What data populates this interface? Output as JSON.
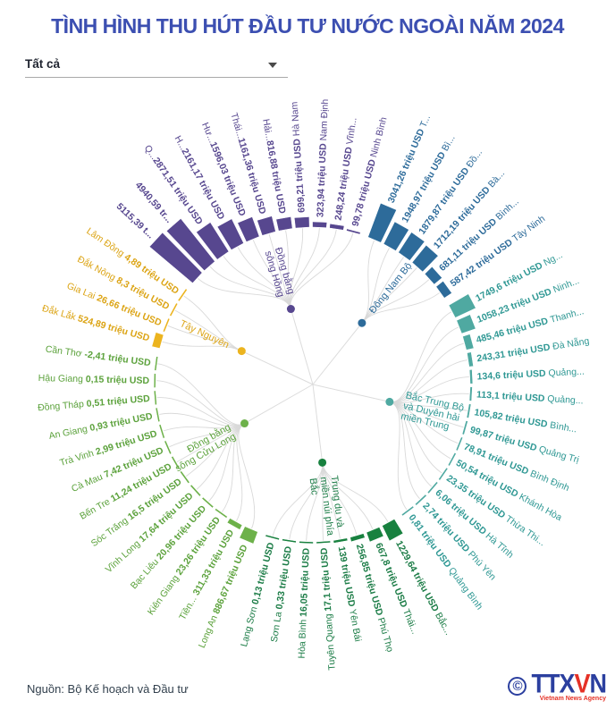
{
  "header": {
    "title": "TÌNH HÌNH THU HÚT ĐẦU TƯ NƯỚC NGOÀI NĂM 2024"
  },
  "filter": {
    "value": "Tất cả"
  },
  "footer": {
    "source": "Nguồn: Bộ Kế hoạch và Đầu tư",
    "logo": {
      "copyright": "©",
      "part1": "TTX",
      "part2": "V",
      "part3": "N",
      "subtitle": "Vietnam News Agency"
    }
  },
  "chart_data": {
    "type": "radial-bar",
    "title": "TÌNH HÌNH THU HÚT ĐẦU TƯ NƯỚC NGOÀI NĂM 2024",
    "unit": "triệu USD",
    "max_value": 5115.39,
    "legend_position": "center-nodes",
    "regions": [
      {
        "full_name": "Đồng bằng sông Hồng",
        "name_lines": [
          "Đồng bằng",
          "sông Hồng"
        ],
        "bar_color": "#57478f",
        "text_color": "#57478f",
        "provinces": [
          {
            "value": 5115.39,
            "parts": [
              [
                "5115,39 t...",
                1
              ]
            ]
          },
          {
            "value": 4940.59,
            "parts": [
              [
                "4940,59 tr...",
                1
              ]
            ]
          },
          {
            "value": 2871.51,
            "parts": [
              [
                "Q...",
                0
              ],
              [
                "2871,51 triệu USD",
                1
              ]
            ]
          },
          {
            "value": 2161.17,
            "parts": [
              [
                "H...",
                0
              ],
              [
                "2161,17 triệu USD",
                1
              ]
            ]
          },
          {
            "value": 1596.03,
            "parts": [
              [
                "Hư...",
                0
              ],
              [
                "1596,03 triệu USD",
                1
              ]
            ]
          },
          {
            "value": 1161.36,
            "parts": [
              [
                "Thái...",
                0
              ],
              [
                "1161,36 triệu USD",
                1
              ]
            ]
          },
          {
            "value": 816.88,
            "parts": [
              [
                "Hải...",
                0
              ],
              [
                "816,88 triệu USD",
                1
              ]
            ]
          },
          {
            "value": 699.21,
            "parts": [
              [
                "699,21 triệu USD ",
                1
              ],
              [
                "Hà Nam",
                0
              ]
            ]
          },
          {
            "value": 323.94,
            "parts": [
              [
                "323,94 triệu USD ",
                1
              ],
              [
                "Nam Định",
                0
              ]
            ]
          },
          {
            "value": 248.24,
            "parts": [
              [
                "248,24 triệu USD ",
                1
              ],
              [
                "Vĩnh...",
                0
              ]
            ]
          },
          {
            "value": 99.78,
            "parts": [
              [
                "99,78 triệu USD ",
                1
              ],
              [
                "Ninh Bình",
                0
              ]
            ]
          }
        ]
      },
      {
        "full_name": "Đông Nam Bộ",
        "name_lines": [
          "Đông Nam Bộ"
        ],
        "bar_color": "#2d6b9a",
        "text_color": "#2d6b9a",
        "provinces": [
          {
            "value": 3041.26,
            "parts": [
              [
                "3041,26 triệu USD ",
                1
              ],
              [
                "T...",
                0
              ]
            ]
          },
          {
            "value": 1948.97,
            "parts": [
              [
                "1948,97 triệu USD ",
                1
              ],
              [
                "Bì...",
                0
              ]
            ]
          },
          {
            "value": 1879.87,
            "parts": [
              [
                "1879,87 triệu USD ",
                1
              ],
              [
                "Đồ...",
                0
              ]
            ]
          },
          {
            "value": 1712.19,
            "parts": [
              [
                "1712,19 triệu USD ",
                1
              ],
              [
                "Bà...",
                0
              ]
            ]
          },
          {
            "value": 681.11,
            "parts": [
              [
                "681,11 triệu USD ",
                1
              ],
              [
                "Bình...",
                0
              ]
            ]
          },
          {
            "value": 587.42,
            "parts": [
              [
                "587,42 triệu USD ",
                1
              ],
              [
                "Tây Ninh",
                0
              ]
            ]
          }
        ]
      },
      {
        "full_name": "Bắc Trung Bộ và Duyên hải miền Trung",
        "name_lines": [
          "Bắc Trung Bộ",
          "và Duyên hải",
          "miền Trung"
        ],
        "bar_color": "#4fa9a1",
        "text_color": "#2f9894",
        "provinces": [
          {
            "value": 1749.6,
            "parts": [
              [
                "1749,6 triệu USD ",
                1
              ],
              [
                "Ng...",
                0
              ]
            ]
          },
          {
            "value": 1058.23,
            "parts": [
              [
                "1058,23 triệu USD ",
                1
              ],
              [
                "Ninh...",
                0
              ]
            ]
          },
          {
            "value": 485.46,
            "parts": [
              [
                "485,46 triệu USD ",
                1
              ],
              [
                "Thanh...",
                0
              ]
            ]
          },
          {
            "value": 243.31,
            "parts": [
              [
                "243,31 triệu USD ",
                1
              ],
              [
                "Đà Nẵng",
                0
              ]
            ]
          },
          {
            "value": 134.6,
            "parts": [
              [
                "134,6 triệu USD ",
                1
              ],
              [
                "Quảng...",
                0
              ]
            ]
          },
          {
            "value": 113.1,
            "parts": [
              [
                "113,1 triệu USD ",
                1
              ],
              [
                "Quảng...",
                0
              ]
            ]
          },
          {
            "value": 105.82,
            "parts": [
              [
                "105,82 triệu USD ",
                1
              ],
              [
                "Bình...",
                0
              ]
            ]
          },
          {
            "value": 99.87,
            "parts": [
              [
                "99,87 triệu USD ",
                1
              ],
              [
                "Quảng Trị",
                0
              ]
            ]
          },
          {
            "value": 78.91,
            "parts": [
              [
                "78,91 triệu USD ",
                1
              ],
              [
                "Bình Định",
                0
              ]
            ]
          },
          {
            "value": 50.54,
            "parts": [
              [
                "50,54 triệu USD ",
                1
              ],
              [
                "Khánh Hòa",
                0
              ]
            ]
          },
          {
            "value": 23.35,
            "parts": [
              [
                "23,35 triệu USD ",
                1
              ],
              [
                "Thừa Thi...",
                0
              ]
            ]
          },
          {
            "value": 6.06,
            "parts": [
              [
                "6,06 triệu USD ",
                1
              ],
              [
                "Hà Tĩnh",
                0
              ]
            ]
          },
          {
            "value": 2.74,
            "parts": [
              [
                "2,74 triệu USD ",
                1
              ],
              [
                "Phú Yên",
                0
              ]
            ]
          },
          {
            "value": 0.81,
            "parts": [
              [
                "0,81 triệu USD ",
                1
              ],
              [
                "Quảng Bình",
                0
              ]
            ]
          }
        ]
      },
      {
        "full_name": "Trung du và miền núi phía Bắc",
        "name_lines": [
          "Trung du và",
          "miền núi phía",
          "Bắc"
        ],
        "bar_color": "#18813f",
        "text_color": "#1b7c46",
        "provinces": [
          {
            "value": 1229.64,
            "parts": [
              [
                "1229,64 triệu USD ",
                1
              ],
              [
                "Bắc...",
                0
              ]
            ]
          },
          {
            "value": 667.8,
            "parts": [
              [
                "667,8 triệu USD ",
                1
              ],
              [
                "Thái...",
                0
              ]
            ]
          },
          {
            "value": 256.85,
            "parts": [
              [
                "256,85 triệu USD ",
                1
              ],
              [
                "Phú Thọ",
                0
              ]
            ]
          },
          {
            "value": 139,
            "parts": [
              [
                "139 triệu USD ",
                1
              ],
              [
                "Yên Bái",
                0
              ]
            ]
          },
          {
            "value": 17.1,
            "parts": [
              [
                "Tuyên Quang ",
                0
              ],
              [
                "17,1 triệu USD",
                1
              ]
            ]
          },
          {
            "value": 16.05,
            "parts": [
              [
                "Hòa Bình ",
                0
              ],
              [
                "16,05 triệu USD",
                1
              ]
            ]
          },
          {
            "value": 0.33,
            "parts": [
              [
                "Sơn La ",
                0
              ],
              [
                "0,33 triệu USD",
                1
              ]
            ]
          },
          {
            "value": 0.13,
            "parts": [
              [
                "Lạng Sơn ",
                0
              ],
              [
                "0,13 triệu USD",
                1
              ]
            ]
          }
        ]
      },
      {
        "full_name": "Đồng bằng sông Cửu Long",
        "name_lines": [
          "Đồng bằng",
          "sông Cửu Long"
        ],
        "bar_color": "#6db14a",
        "text_color": "#5ca23c",
        "provinces": [
          {
            "value": 886.67,
            "parts": [
              [
                "Long An ",
                0
              ],
              [
                "886,67 triệu USD",
                1
              ]
            ]
          },
          {
            "value": 311.33,
            "parts": [
              [
                "Tiền... ",
                0
              ],
              [
                "311,33 triệu USD",
                1
              ]
            ]
          },
          {
            "value": 23.26,
            "parts": [
              [
                "Kiên Giang ",
                0
              ],
              [
                "23,26 triệu USD",
                1
              ]
            ]
          },
          {
            "value": 20.96,
            "parts": [
              [
                "Bạc Liêu ",
                0
              ],
              [
                "20,96 triệu USD",
                1
              ]
            ]
          },
          {
            "value": 17.64,
            "parts": [
              [
                "Vĩnh Long ",
                0
              ],
              [
                "17,64 triệu USD",
                1
              ]
            ]
          },
          {
            "value": 16.5,
            "parts": [
              [
                "Sóc Trăng ",
                0
              ],
              [
                "16,5 triệu USD",
                1
              ]
            ]
          },
          {
            "value": 11.24,
            "parts": [
              [
                "Bến Tre ",
                0
              ],
              [
                "11,24 triệu USD",
                1
              ]
            ]
          },
          {
            "value": 7.42,
            "parts": [
              [
                "Cà Mau ",
                0
              ],
              [
                "7,42 triệu USD",
                1
              ]
            ]
          },
          {
            "value": 2.99,
            "parts": [
              [
                "Trà Vinh ",
                0
              ],
              [
                "2,99 triệu USD",
                1
              ]
            ]
          },
          {
            "value": 0.93,
            "parts": [
              [
                "An Giang ",
                0
              ],
              [
                "0,93 triệu USD",
                1
              ]
            ]
          },
          {
            "value": 0.51,
            "parts": [
              [
                "Đồng Tháp ",
                0
              ],
              [
                "0,51 triệu USD",
                1
              ]
            ]
          },
          {
            "value": 0.15,
            "parts": [
              [
                "Hậu Giang ",
                0
              ],
              [
                "0,15 triệu USD",
                1
              ]
            ]
          },
          {
            "value": -2.41,
            "parts": [
              [
                "Cần Thơ ",
                0
              ],
              [
                "-2,41 triệu USD",
                1
              ]
            ]
          }
        ]
      },
      {
        "full_name": "Tây Nguyên",
        "name_lines": [
          "Tây Nguyên"
        ],
        "bar_color": "#ecb41f",
        "text_color": "#dca414",
        "provinces": [
          {
            "value": 524.89,
            "parts": [
              [
                "Đắk Lắk ",
                0
              ],
              [
                "524,89 triệu USD",
                1
              ]
            ]
          },
          {
            "value": 26.66,
            "parts": [
              [
                "Gia Lai ",
                0
              ],
              [
                "26,66 triệu USD",
                1
              ]
            ]
          },
          {
            "value": 8.3,
            "parts": [
              [
                "Đắk Nông ",
                0
              ],
              [
                "8,3 triệu USD",
                1
              ]
            ]
          },
          {
            "value": 4.89,
            "parts": [
              [
                "Lâm Đồng ",
                0
              ],
              [
                "4,89 triệu USD",
                1
              ]
            ]
          }
        ]
      }
    ]
  }
}
